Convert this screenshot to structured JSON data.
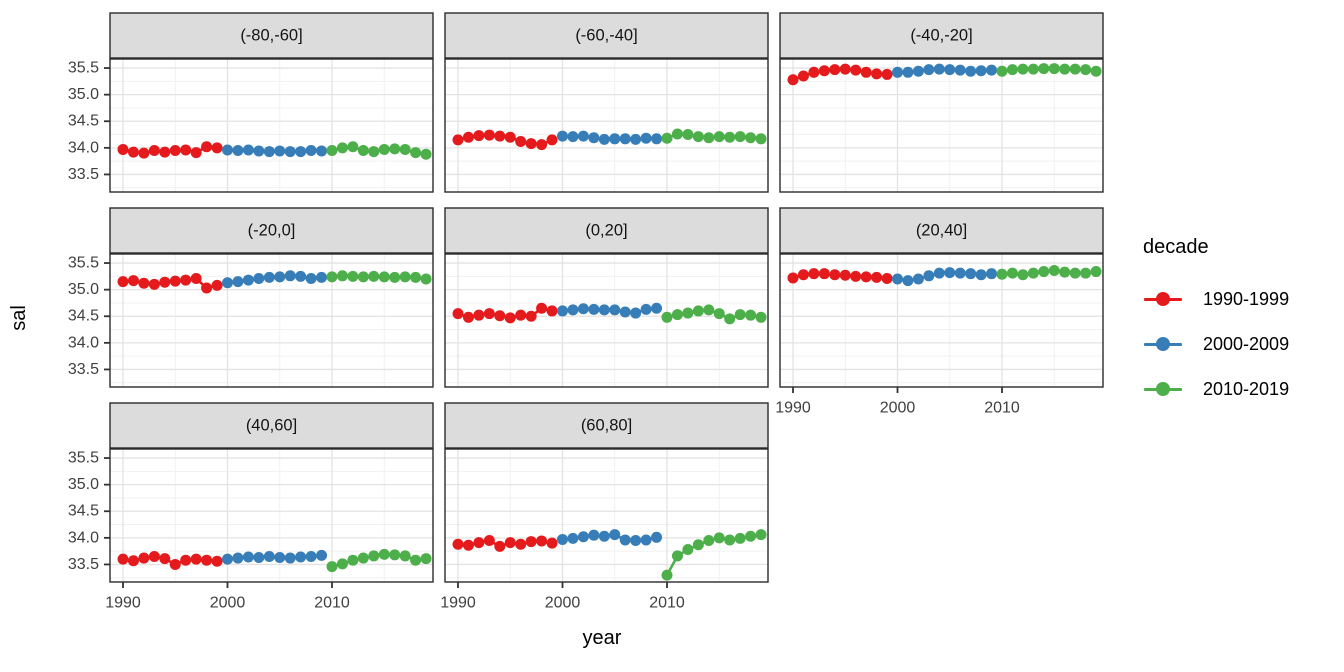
{
  "figure": {
    "ylabel": "sal",
    "xlabel": "year",
    "legend": {
      "title": "decade",
      "entries": [
        {
          "label": "1990-1999",
          "color": "#E41A1C"
        },
        {
          "label": "2000-2009",
          "color": "#377EB8"
        },
        {
          "label": "2010-2019",
          "color": "#4DAF4A"
        }
      ]
    }
  },
  "chart_data": {
    "type": "scatter",
    "title": "",
    "xlabel": "year",
    "ylabel": "sal",
    "legend_title": "decade",
    "legend_position": "right",
    "grid": "on",
    "x_ticks": [
      1990,
      2000,
      2010
    ],
    "x_minor_ticks": [
      1995,
      2005,
      2015
    ],
    "y_ticks": [
      35.5,
      35.0,
      34.5,
      34.0,
      33.5
    ],
    "y_minor_ticks": [
      35.25,
      34.75,
      34.25,
      33.75,
      33.25
    ],
    "x_domain": [
      1988.8,
      2020.2
    ],
    "y_domain": [
      33.17,
      35.67
    ],
    "series_names": [
      "1990-1999",
      "2000-2009",
      "2010-2019"
    ],
    "series_colors": [
      "#E41A1C",
      "#377EB8",
      "#4DAF4A"
    ],
    "decade_starts": [
      1990,
      2000,
      2010
    ],
    "facets": [
      {
        "label": "(-80,-60]",
        "series": [
          [
            33.97,
            33.92,
            33.9,
            33.95,
            33.92,
            33.95,
            33.96,
            33.91,
            34.02,
            34.0
          ],
          [
            33.96,
            33.95,
            33.96,
            33.94,
            33.93,
            33.94,
            33.93,
            33.93,
            33.95,
            33.94
          ],
          [
            33.95,
            34.0,
            34.02,
            33.95,
            33.93,
            33.97,
            33.98,
            33.97,
            33.91,
            33.88
          ]
        ]
      },
      {
        "label": "(-60,-40]",
        "series": [
          [
            34.15,
            34.2,
            34.23,
            34.24,
            34.22,
            34.2,
            34.12,
            34.08,
            34.06,
            34.15
          ],
          [
            34.22,
            34.21,
            34.22,
            34.19,
            34.16,
            34.17,
            34.17,
            34.16,
            34.18,
            34.17
          ],
          [
            34.18,
            34.26,
            34.25,
            34.21,
            34.19,
            34.21,
            34.2,
            34.21,
            34.19,
            34.17
          ]
        ]
      },
      {
        "label": "(-40,-20]",
        "series": [
          [
            35.28,
            35.35,
            35.42,
            35.45,
            35.47,
            35.48,
            35.46,
            35.42,
            35.39,
            35.38
          ],
          [
            35.42,
            35.42,
            35.44,
            35.47,
            35.48,
            35.47,
            35.46,
            35.44,
            35.45,
            35.46
          ],
          [
            35.44,
            35.47,
            35.48,
            35.48,
            35.49,
            35.49,
            35.48,
            35.48,
            35.47,
            35.44
          ]
        ]
      },
      {
        "label": "(-20,0]",
        "series": [
          [
            35.15,
            35.17,
            35.12,
            35.1,
            35.14,
            35.16,
            35.18,
            35.21,
            35.03,
            35.08
          ],
          [
            35.13,
            35.15,
            35.18,
            35.21,
            35.23,
            35.24,
            35.26,
            35.25,
            35.21,
            35.23
          ],
          [
            35.24,
            35.26,
            35.25,
            35.24,
            35.25,
            35.24,
            35.23,
            35.24,
            35.23,
            35.2
          ]
        ]
      },
      {
        "label": "(0,20]",
        "series": [
          [
            34.55,
            34.48,
            34.52,
            34.55,
            34.51,
            34.47,
            34.52,
            34.5,
            34.65,
            34.6
          ],
          [
            34.6,
            34.62,
            34.64,
            34.63,
            34.62,
            34.62,
            34.58,
            34.56,
            34.63,
            34.65
          ],
          [
            34.48,
            34.53,
            34.56,
            34.6,
            34.62,
            34.55,
            34.45,
            34.53,
            34.52,
            34.48
          ]
        ]
      },
      {
        "label": "(20,40]",
        "series": [
          [
            35.22,
            35.28,
            35.3,
            35.3,
            35.28,
            35.27,
            35.25,
            35.24,
            35.23,
            35.21
          ],
          [
            35.2,
            35.17,
            35.2,
            35.26,
            35.31,
            35.32,
            35.31,
            35.3,
            35.28,
            35.3
          ],
          [
            35.29,
            35.31,
            35.28,
            35.31,
            35.34,
            35.36,
            35.33,
            35.31,
            35.31,
            35.34
          ]
        ]
      },
      {
        "label": "(40,60]",
        "series": [
          [
            33.6,
            33.57,
            33.62,
            33.65,
            33.61,
            33.5,
            33.58,
            33.6,
            33.58,
            33.56
          ],
          [
            33.6,
            33.62,
            33.64,
            33.63,
            33.65,
            33.63,
            33.62,
            33.64,
            33.65,
            33.67
          ],
          [
            33.46,
            33.51,
            33.58,
            33.62,
            33.66,
            33.69,
            33.68,
            33.66,
            33.58,
            33.61
          ]
        ]
      },
      {
        "label": "(60,80]",
        "series": [
          [
            33.88,
            33.86,
            33.91,
            33.95,
            33.84,
            33.91,
            33.88,
            33.93,
            33.94,
            33.9
          ],
          [
            33.97,
            33.99,
            34.02,
            34.05,
            34.03,
            34.06,
            33.96,
            33.95,
            33.96,
            34.01
          ],
          [
            33.3,
            33.66,
            33.78,
            33.87,
            33.95,
            34.0,
            33.96,
            33.99,
            34.03,
            34.06
          ]
        ]
      }
    ]
  }
}
